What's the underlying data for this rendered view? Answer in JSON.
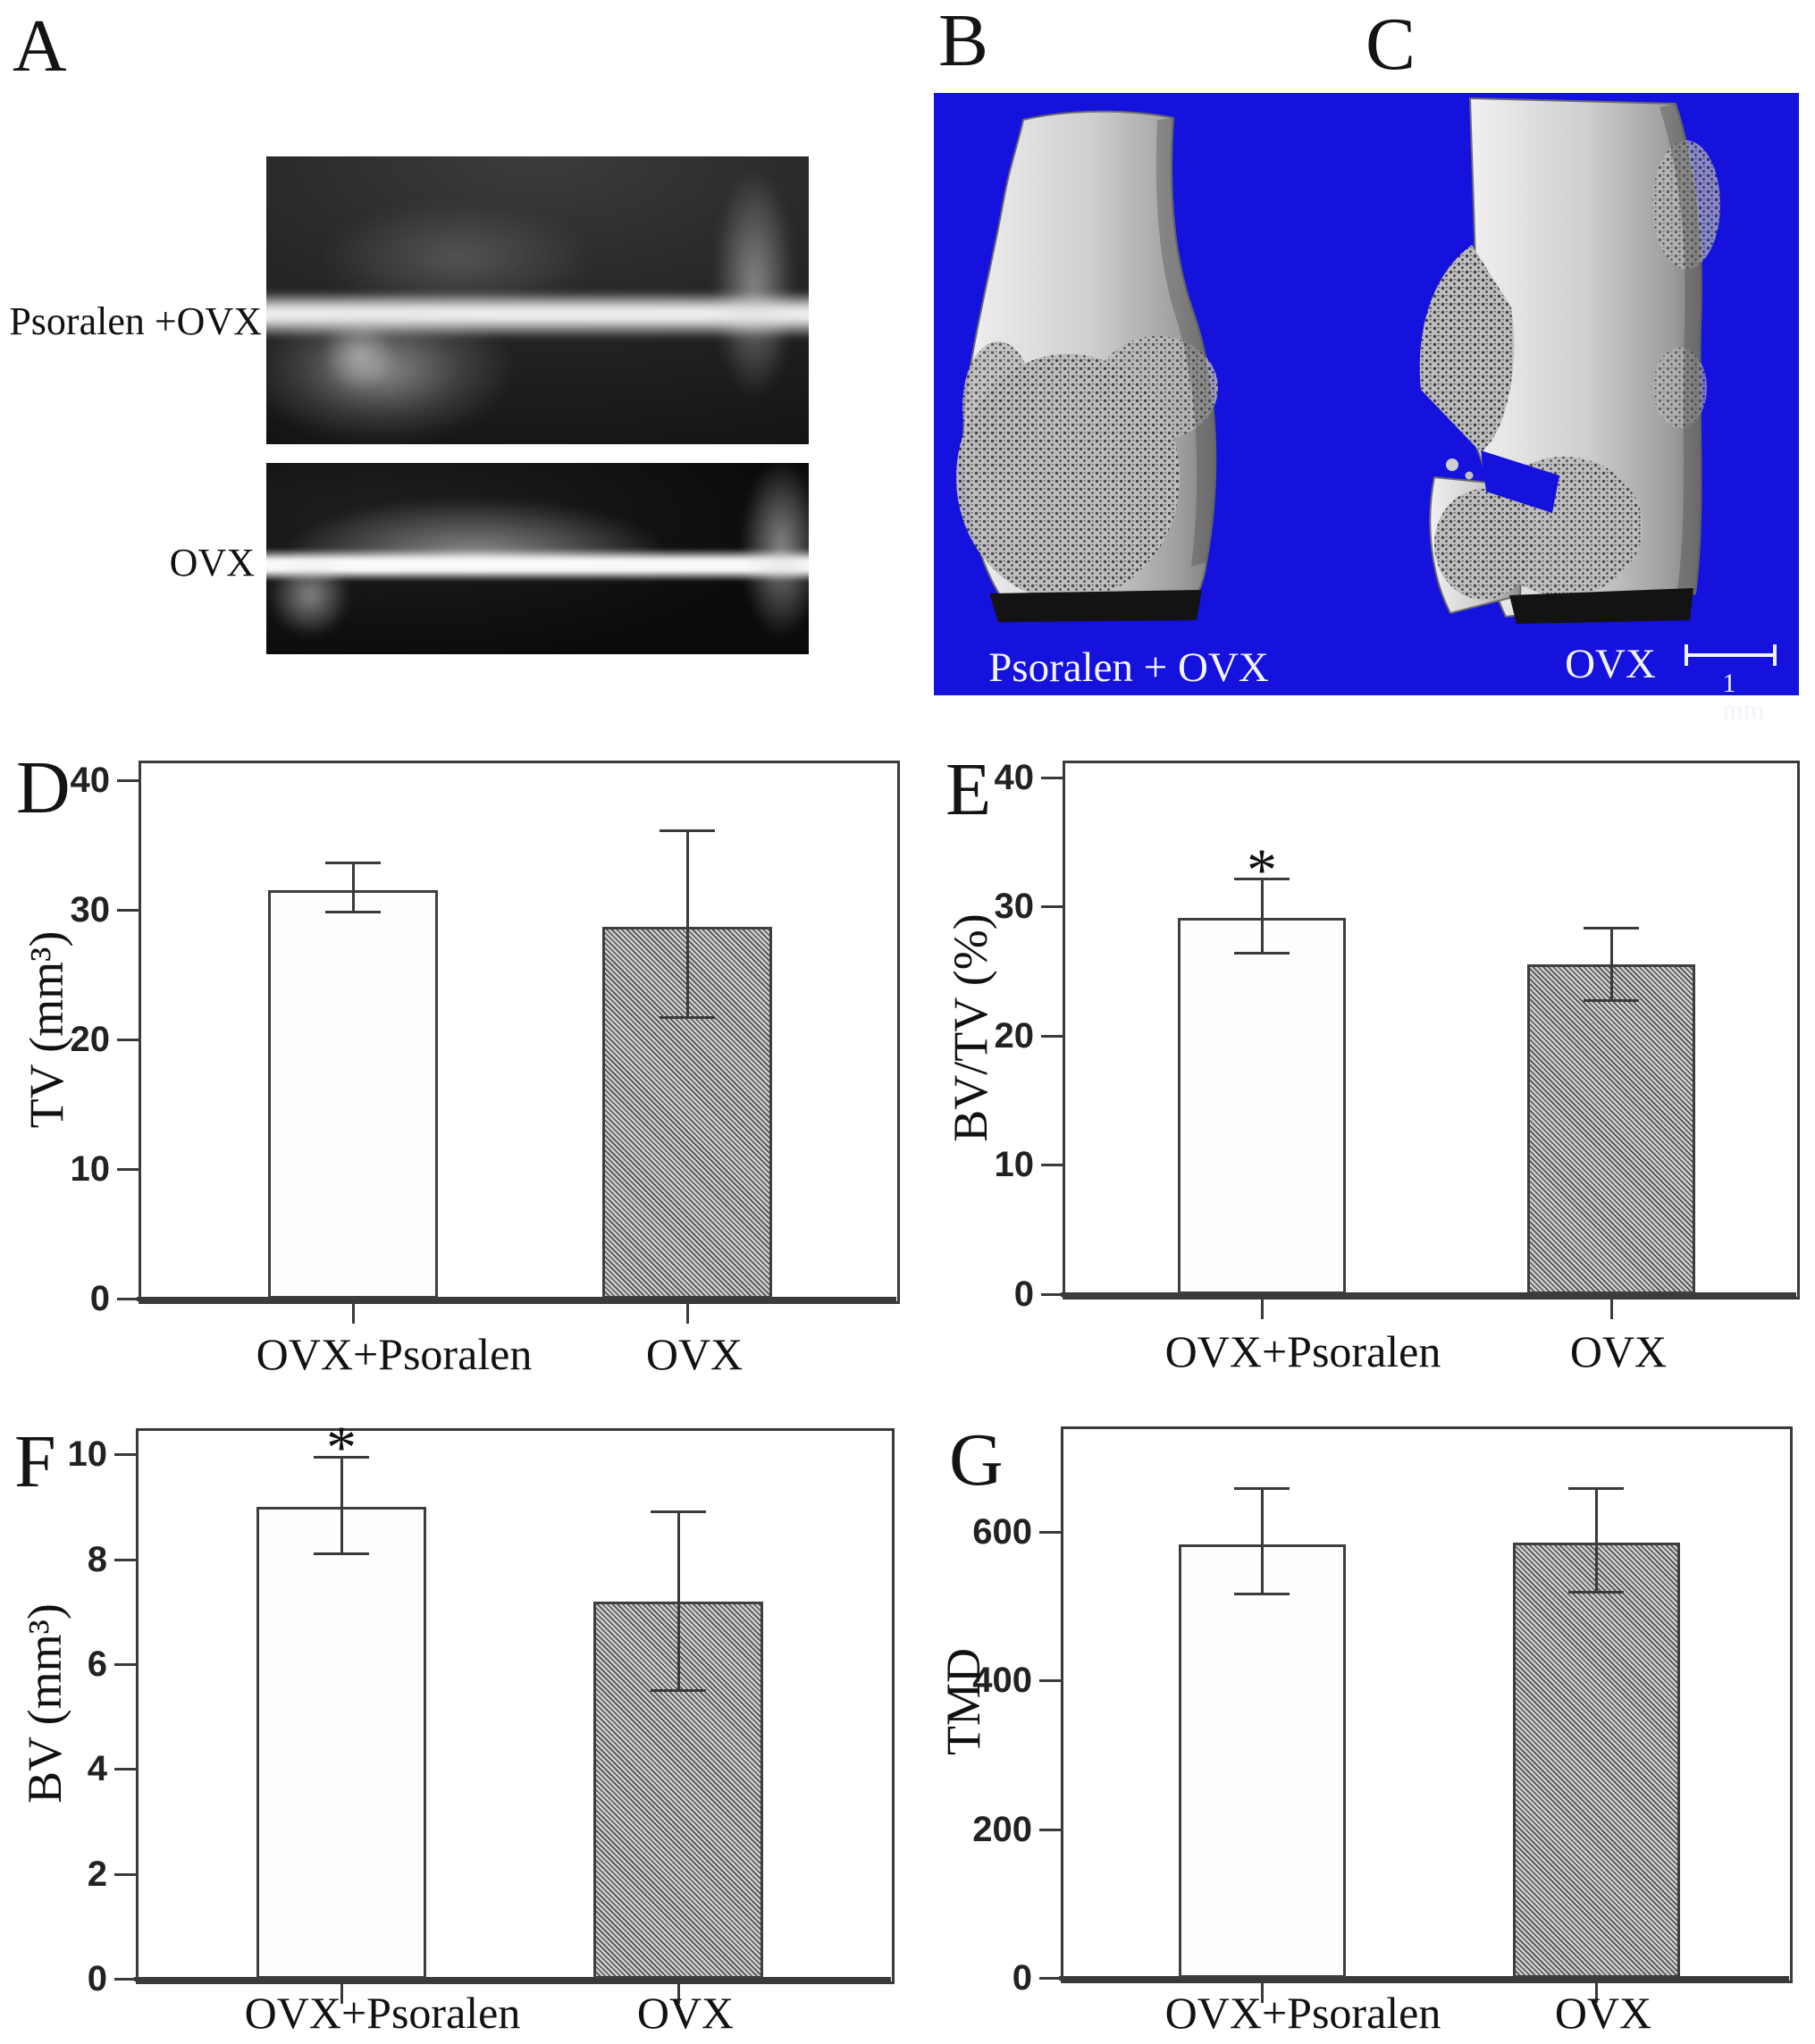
{
  "figure": {
    "background": "#ffffff",
    "panel_letters": {
      "a": "A",
      "b": "B",
      "c": "C",
      "d": "D",
      "e": "E",
      "f": "F",
      "g": "G"
    },
    "panel_a": {
      "xray_top_label": "Psoralen +OVX",
      "xray_bottom_label": "OVX"
    },
    "panel_bc": {
      "background_color": "#1412dc",
      "left_specimen_label": "Psoralen + OVX",
      "right_specimen_label": "OVX",
      "scale_bar_label": "1 mm"
    }
  },
  "chart_data": [
    {
      "id": "tv",
      "panel": "D",
      "type": "bar",
      "ylabel": "TV (mm³)",
      "categories": [
        "OVX+Psoralen",
        "OVX"
      ],
      "values": [
        31.5,
        28.7
      ],
      "error_low": [
        29.8,
        21.7
      ],
      "error_high": [
        33.6,
        36.1
      ],
      "significant": [
        false,
        false
      ],
      "yticks": [
        0,
        10,
        20,
        30,
        40
      ],
      "ylim": [
        0,
        41.5
      ],
      "bar_styles": [
        "white",
        "hatched"
      ],
      "grid": false,
      "legend": "none"
    },
    {
      "id": "bvtv",
      "panel": "E",
      "type": "bar",
      "ylabel": "BV/TV (%)",
      "categories": [
        "OVX+Psoralen",
        "OVX"
      ],
      "values": [
        29.1,
        25.5
      ],
      "error_low": [
        26.4,
        22.7
      ],
      "error_high": [
        32.1,
        28.3
      ],
      "significant": [
        true,
        false
      ],
      "yticks": [
        0,
        10,
        20,
        30,
        40
      ],
      "ylim": [
        0,
        41.3
      ],
      "bar_styles": [
        "white",
        "hatched"
      ],
      "grid": false,
      "legend": "none"
    },
    {
      "id": "bv",
      "panel": "F",
      "type": "bar",
      "ylabel": "BV (mm³)",
      "categories": [
        "OVX+Psoralen",
        "OVX"
      ],
      "values": [
        9.0,
        7.2
      ],
      "error_low": [
        8.1,
        5.5
      ],
      "error_high": [
        9.95,
        8.9
      ],
      "significant": [
        true,
        false
      ],
      "yticks": [
        0,
        2,
        4,
        6,
        8,
        10
      ],
      "ylim": [
        0,
        10.5
      ],
      "bar_styles": [
        "white",
        "hatched"
      ],
      "grid": false,
      "legend": "none"
    },
    {
      "id": "tmd",
      "panel": "G",
      "type": "bar",
      "ylabel": "TMD",
      "categories": [
        "OVX+Psoralen",
        "OVX"
      ],
      "values": [
        583,
        586
      ],
      "error_low": [
        516,
        519
      ],
      "error_high": [
        658,
        658
      ],
      "significant": [
        false,
        false
      ],
      "yticks": [
        0,
        200,
        400,
        600
      ],
      "ylim": [
        0,
        742
      ],
      "bar_styles": [
        "white",
        "hatched"
      ],
      "grid": false,
      "legend": "none"
    }
  ]
}
